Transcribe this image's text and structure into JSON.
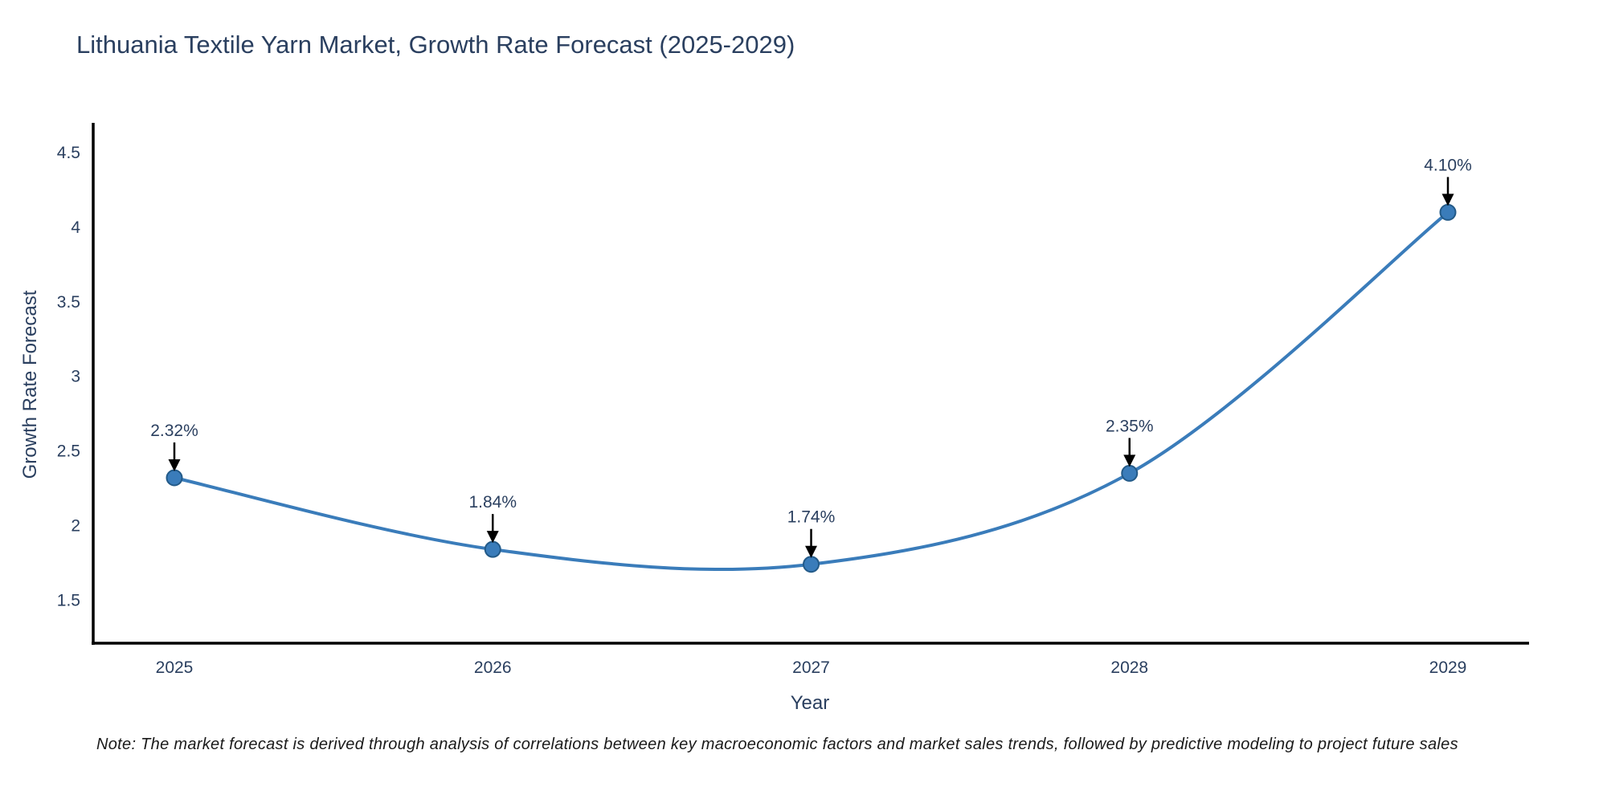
{
  "header": {
    "title": "Lithuania Textile Yarn Market, Growth Rate Forecast (2025-2029)"
  },
  "chart_data": {
    "type": "line",
    "line_shape": "spline",
    "title": "Lithuania Textile Yarn Market, Growth Rate Forecast (2025-2029)",
    "xlabel": "Year",
    "ylabel": "Growth Rate Forecast",
    "categories": [
      "2025",
      "2026",
      "2027",
      "2028",
      "2029"
    ],
    "values": [
      2.32,
      1.84,
      1.74,
      2.35,
      4.1
    ],
    "point_labels": [
      "2.32%",
      "1.84%",
      "1.74%",
      "2.35%",
      "4.10%"
    ],
    "yticks": [
      4.5,
      4,
      3.5,
      3,
      2.5,
      2,
      1.5
    ],
    "ylim": [
      1.2,
      4.7
    ],
    "grid": false,
    "legend": "none",
    "annotation_style": "down-arrow-to-point",
    "colors": {
      "line": "#3a7cba",
      "marker_fill": "#3a7cba",
      "marker_edge": "#235a88",
      "axis": "#000000",
      "text": "#2a3f5f",
      "arrow": "#000000"
    }
  },
  "footer": {
    "note": "Note: The market forecast is derived through analysis of correlations between key macroeconomic factors and market sales trends, followed by predictive modeling to project future sales"
  }
}
